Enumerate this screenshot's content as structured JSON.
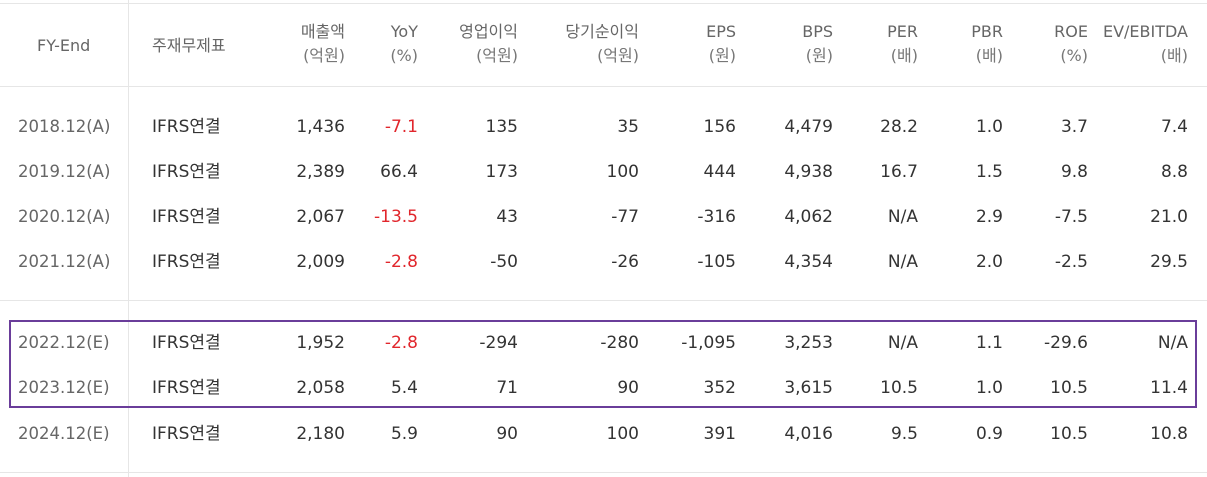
{
  "header": {
    "fy_end": "FY-End",
    "main_statement": "주재무제표",
    "columns": [
      {
        "name": "매출액",
        "unit": "(억원)"
      },
      {
        "name": "YoY",
        "unit": "(%)"
      },
      {
        "name": "영업이익",
        "unit": "(억원)"
      },
      {
        "name": "당기순이익",
        "unit": "(억원)"
      },
      {
        "name": "EPS",
        "unit": "(원)"
      },
      {
        "name": "BPS",
        "unit": "(원)"
      },
      {
        "name": "PER",
        "unit": "(배)"
      },
      {
        "name": "PBR",
        "unit": "(배)"
      },
      {
        "name": "ROE",
        "unit": "(%)"
      },
      {
        "name": "EV/EBITDA",
        "unit": "(배)"
      }
    ]
  },
  "rows": [
    {
      "fy": "2018.12(A)",
      "statement": "IFRS연결",
      "values": [
        "1,436",
        "-7.1",
        "135",
        "35",
        "156",
        "4,479",
        "28.2",
        "1.0",
        "3.7",
        "7.4"
      ],
      "negative_yoy": true
    },
    {
      "fy": "2019.12(A)",
      "statement": "IFRS연결",
      "values": [
        "2,389",
        "66.4",
        "173",
        "100",
        "444",
        "4,938",
        "16.7",
        "1.5",
        "9.8",
        "8.8"
      ],
      "negative_yoy": false
    },
    {
      "fy": "2020.12(A)",
      "statement": "IFRS연결",
      "values": [
        "2,067",
        "-13.5",
        "43",
        "-77",
        "-316",
        "4,062",
        "N/A",
        "2.9",
        "-7.5",
        "21.0"
      ],
      "negative_yoy": true
    },
    {
      "fy": "2021.12(A)",
      "statement": "IFRS연결",
      "values": [
        "2,009",
        "-2.8",
        "-50",
        "-26",
        "-105",
        "4,354",
        "N/A",
        "2.0",
        "-2.5",
        "29.5"
      ],
      "negative_yoy": true
    },
    {
      "fy": "2022.12(E)",
      "statement": "IFRS연결",
      "values": [
        "1,952",
        "-2.8",
        "-294",
        "-280",
        "-1,095",
        "3,253",
        "N/A",
        "1.1",
        "-29.6",
        "N/A"
      ],
      "negative_yoy": true
    },
    {
      "fy": "2023.12(E)",
      "statement": "IFRS연결",
      "values": [
        "2,058",
        "5.4",
        "71",
        "90",
        "352",
        "3,615",
        "10.5",
        "1.0",
        "10.5",
        "11.4"
      ],
      "negative_yoy": false
    },
    {
      "fy": "2024.12(E)",
      "statement": "IFRS연결",
      "values": [
        "2,180",
        "5.9",
        "90",
        "100",
        "391",
        "4,016",
        "9.5",
        "0.9",
        "10.5",
        "10.8"
      ],
      "negative_yoy": false
    }
  ],
  "colors": {
    "negative_yoy": "#e1262c",
    "highlight_border": "#6a3d9a",
    "grid": "#e6e6e6"
  }
}
